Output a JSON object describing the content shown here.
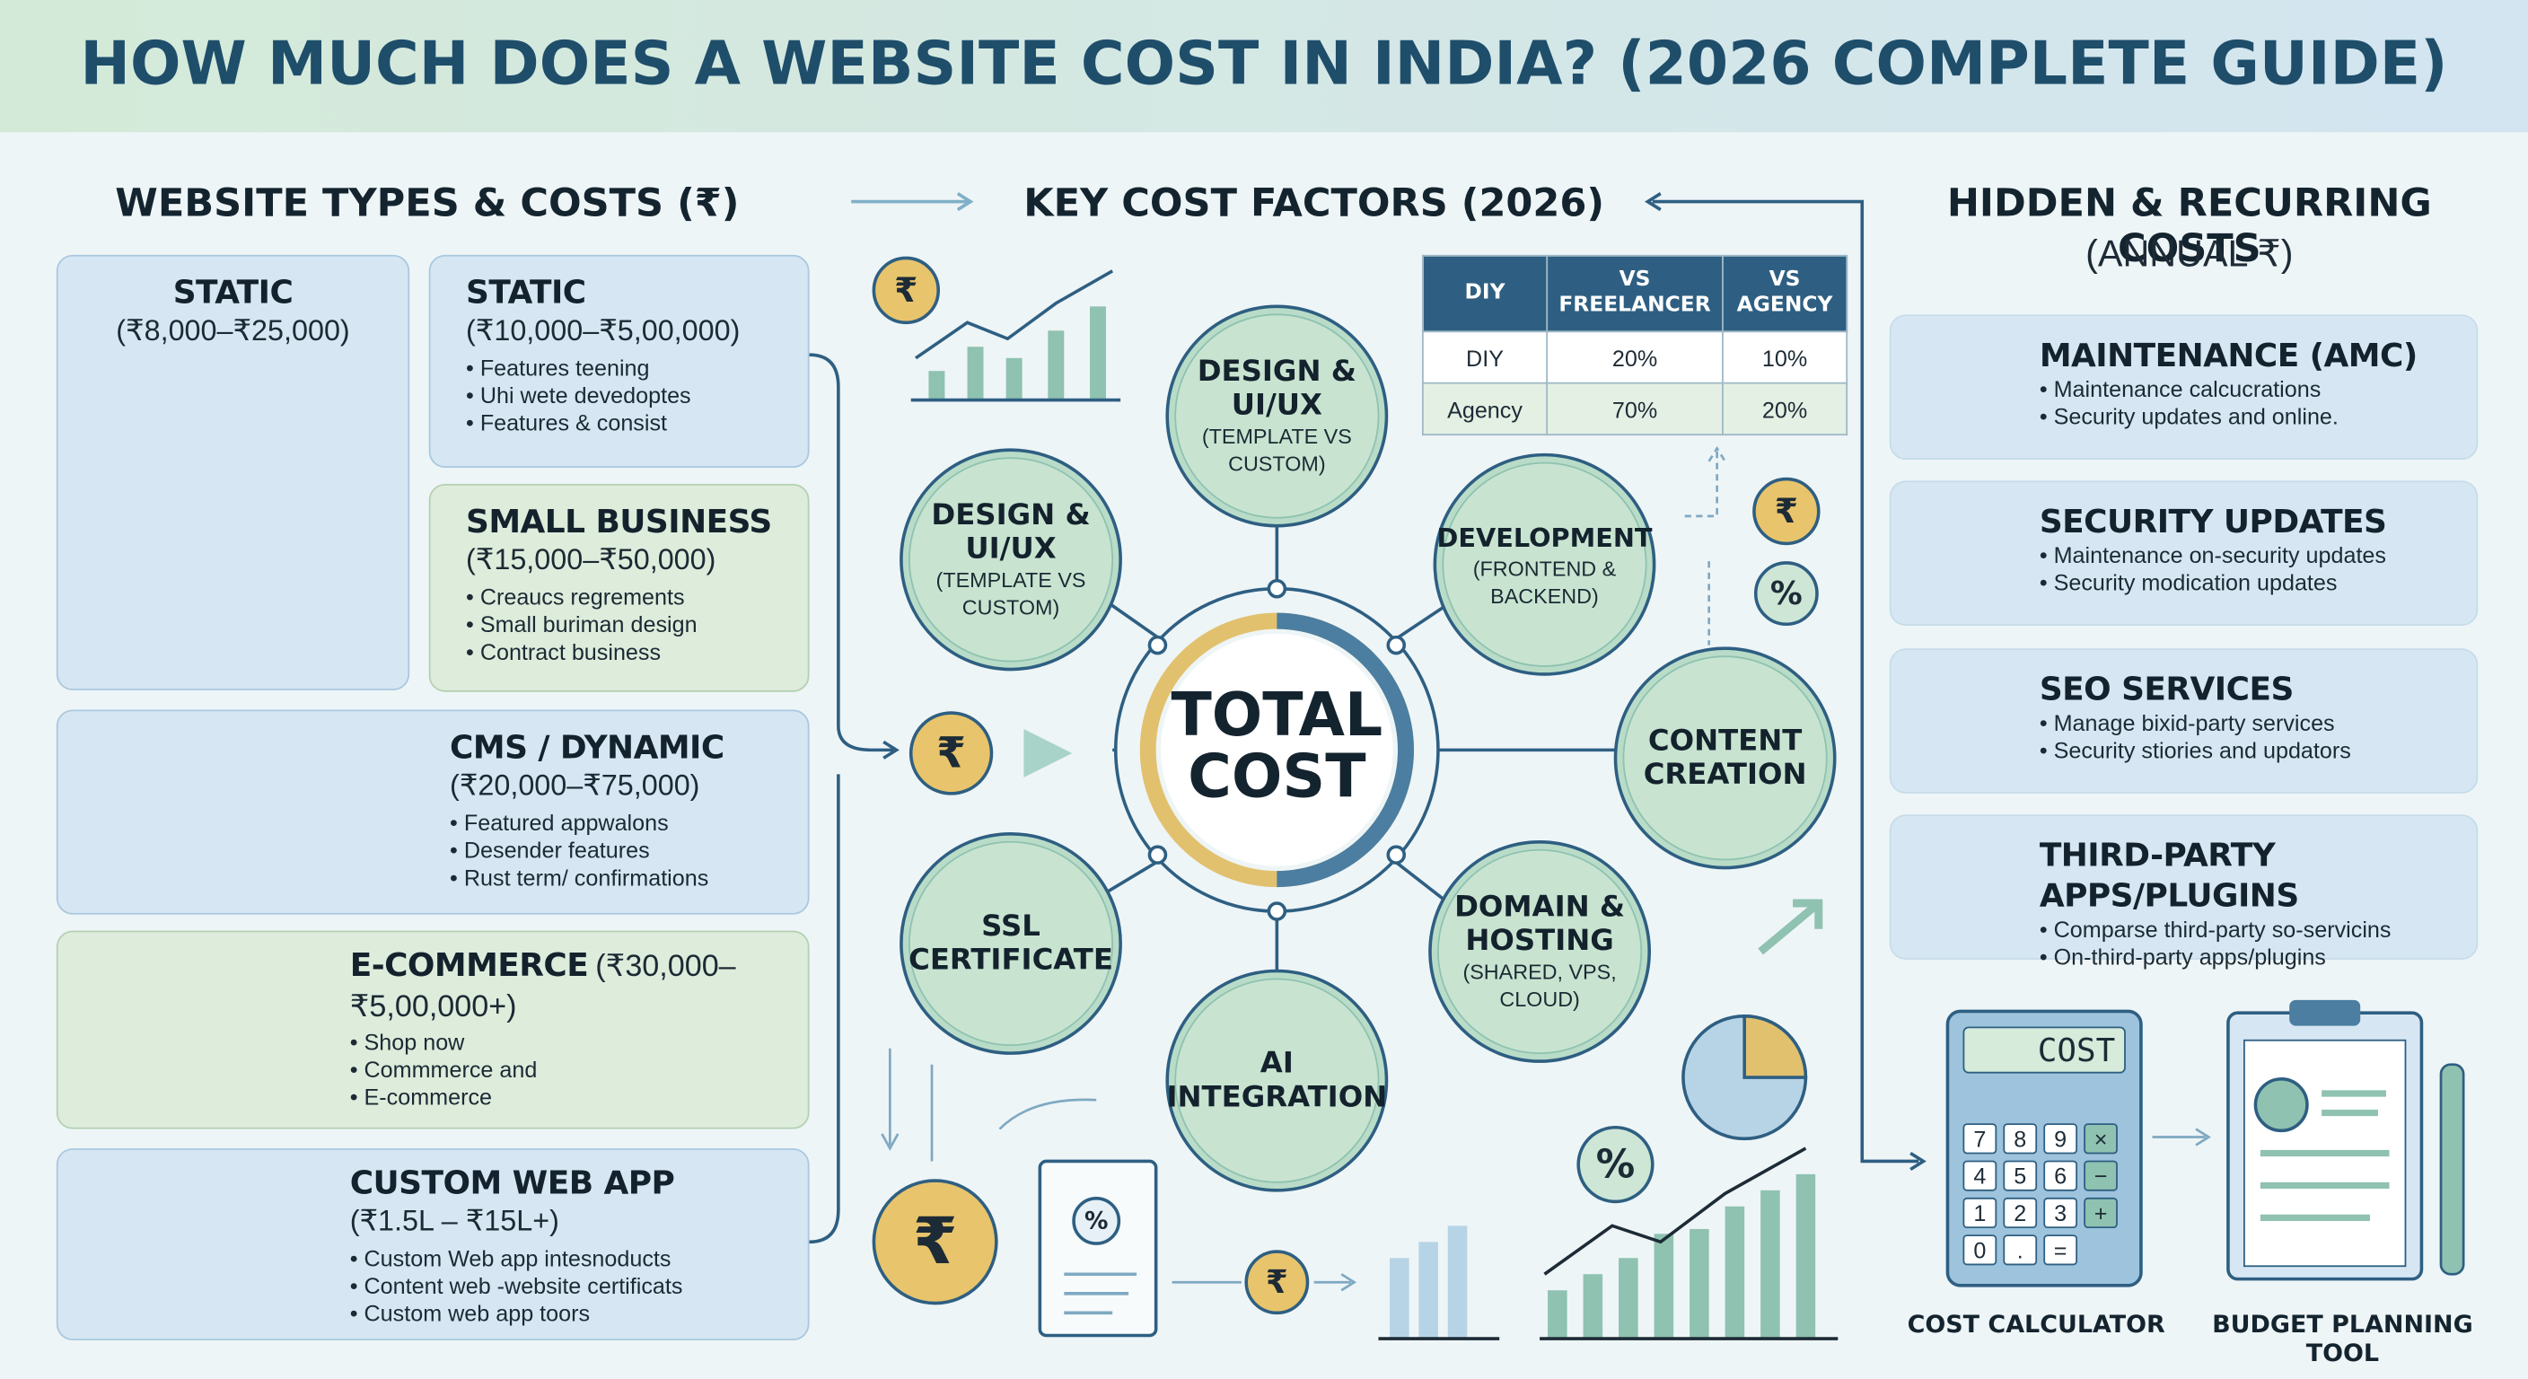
{
  "title": "HOW MUCH DOES A WEBSITE COST IN INDIA? (2026 COMPLETE GUIDE)",
  "icons": {
    "rupee": "₹",
    "percent": "%"
  },
  "website_types": {
    "heading": "WEBSITE TYPES & COSTS (₹)",
    "cards": [
      {
        "name": "STATIC",
        "price": "(₹8,000–₹25,000)",
        "bullets": []
      },
      {
        "name": "STATIC",
        "price": "(₹10,000–₹5,00,000)",
        "bullets": [
          "Features teening",
          "Uhi wete devedoptes",
          "Features & consist"
        ]
      },
      {
        "name": "SMALL BUSINESS",
        "price": "(₹15,000–₹50,000)",
        "bullets": [
          "Creaucs regrements",
          "Small buriman design",
          "Contract business"
        ]
      },
      {
        "name": "CMS / DYNAMIC",
        "price": "(₹20,000–₹75,000)",
        "bullets": [
          "Featured appwalons",
          "Desender features",
          "Rust term/ confirmations"
        ]
      },
      {
        "name": "E-COMMERCE",
        "price": "(₹30,000–₹5,00,000+)",
        "bullets": [
          "Shop now",
          "Commmerce and",
          "E-commerce"
        ]
      },
      {
        "name": "CUSTOM WEB APP",
        "price": "(₹1.5L – ₹15L+)",
        "bullets": [
          "Custom Web app intesnoducts",
          "Content web -website certificats",
          "Custom web app toors"
        ]
      }
    ]
  },
  "key_factors": {
    "heading": "KEY COST FACTORS (2026)",
    "hub": "TOTAL COST",
    "nodes": [
      {
        "label": "DESIGN & UI/UX",
        "sub": "(TEMPLATE VS CUSTOM)"
      },
      {
        "label": "DESIGN & UI/UX",
        "sub": "(TEMPLATE VS CUSTOM)"
      },
      {
        "label": "DEVELOPMENT",
        "sub": "(FRONTEND & BACKEND)"
      },
      {
        "label": "CONTENT CREATION",
        "sub": null
      },
      {
        "label": "DOMAIN & HOSTING",
        "sub": "(SHARED, VPS, CLOUD)"
      },
      {
        "label": "AI INTEGRATION",
        "sub": null
      },
      {
        "label": "SSL CERTIFICATE",
        "sub": null
      }
    ],
    "table": {
      "header": [
        "DIY",
        "VS FREELANCER",
        "VS AGENCY"
      ],
      "rows": [
        [
          "DIY",
          "20%",
          "10%"
        ],
        [
          "Agency",
          "70%",
          "20%"
        ]
      ]
    }
  },
  "hidden_costs": {
    "heading": "HIDDEN & RECURRING COSTS",
    "subheading": "(ANNUAL ₹)",
    "cards": [
      {
        "name": "MAINTENANCE (AMC)",
        "bullets": [
          "Maintenance calcucrations",
          "Security updates and online."
        ]
      },
      {
        "name": "SECURITY UPDATES",
        "bullets": [
          "Maintenance on-security updates",
          "Security modication updates"
        ]
      },
      {
        "name": "SEO SERVICES",
        "bullets": [
          "Manage bixid-party services",
          "Security stiories and updators"
        ]
      },
      {
        "name": "THIRD-PARTY APPS/PLUGINS",
        "bullets": [
          "Comparse third-party so-servicins",
          "On-third-party apps/plugins"
        ]
      }
    ]
  },
  "tools": {
    "calculator": {
      "display": "COST",
      "keys": [
        "7",
        "8",
        "9",
        "×",
        "4",
        "5",
        "6",
        "−",
        "1",
        "2",
        "3",
        "+",
        "0",
        ".",
        "="
      ],
      "label": "COST CALCULATOR"
    },
    "planner": {
      "label": "BUDGET PLANNING TOOL"
    }
  }
}
